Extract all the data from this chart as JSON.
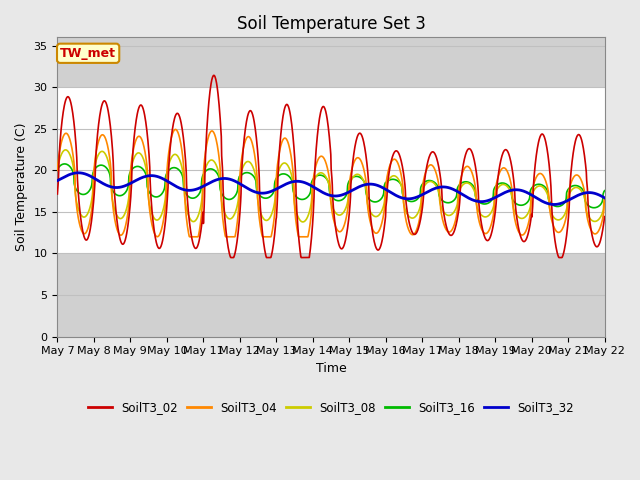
{
  "title": "Soil Temperature Set 3",
  "xlabel": "Time",
  "ylabel": "Soil Temperature (C)",
  "ylim": [
    0,
    36
  ],
  "yticks": [
    0,
    5,
    10,
    15,
    20,
    25,
    30,
    35
  ],
  "annotation_text": "TW_met",
  "background_color": "#e8e8e8",
  "series": {
    "SoilT3_02": {
      "color": "#cc0000",
      "linewidth": 1.2
    },
    "SoilT3_04": {
      "color": "#ff8800",
      "linewidth": 1.2
    },
    "SoilT3_08": {
      "color": "#cccc00",
      "linewidth": 1.2
    },
    "SoilT3_16": {
      "color": "#00bb00",
      "linewidth": 1.2
    },
    "SoilT3_32": {
      "color": "#0000cc",
      "linewidth": 2.0
    }
  },
  "title_fontsize": 12,
  "axis_label_fontsize": 9,
  "tick_fontsize": 8
}
